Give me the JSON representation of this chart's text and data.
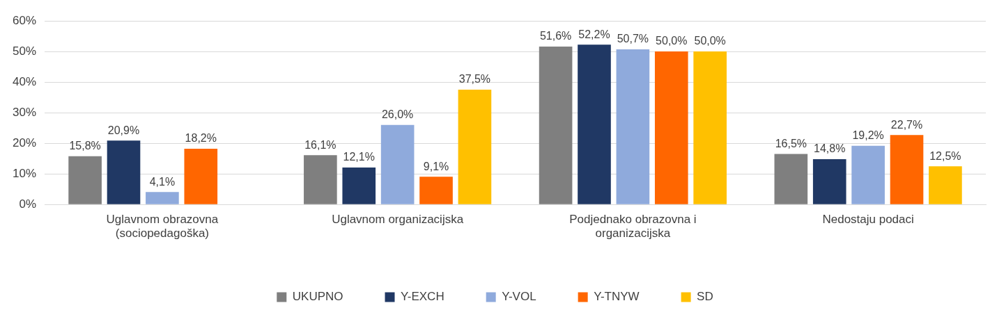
{
  "chart_data": {
    "type": "bar",
    "categories": [
      "Uglavnom obrazovna (sociopedagoška)",
      "Uglavnom organizacijska",
      "Podjednako obrazovna i organizacijska",
      "Nedostaju podaci"
    ],
    "series": [
      {
        "name": "UKUPNO",
        "color": "#7f7f7f",
        "values": [
          15.8,
          16.1,
          51.6,
          16.5
        ],
        "value_labels": [
          "15,8%",
          "16,1%",
          "51,6%",
          "16,5%"
        ]
      },
      {
        "name": "Y-EXCH",
        "color": "#203864",
        "values": [
          20.9,
          12.1,
          52.2,
          14.8
        ],
        "value_labels": [
          "20,9%",
          "12,1%",
          "52,2%",
          "14,8%"
        ]
      },
      {
        "name": "Y-VOL",
        "color": "#8faadc",
        "values": [
          4.1,
          26.0,
          50.7,
          19.2
        ],
        "value_labels": [
          "4,1%",
          "26,0%",
          "50,7%",
          "19,2%"
        ]
      },
      {
        "name": "Y-TNYW",
        "color": "#ff6600",
        "values": [
          18.2,
          9.1,
          50.0,
          22.7
        ],
        "value_labels": [
          "18,2%",
          "9,1%",
          "50,0%",
          "22,7%"
        ]
      },
      {
        "name": "SD",
        "color": "#ffc000",
        "values": [
          null,
          37.5,
          50.0,
          12.5
        ],
        "value_labels": [
          null,
          "37,5%",
          "50,0%",
          "12,5%"
        ]
      }
    ],
    "ylim": [
      0,
      60
    ],
    "yticks": [
      {
        "value": 0,
        "label": "0%"
      },
      {
        "value": 10,
        "label": "10%"
      },
      {
        "value": 20,
        "label": "20%"
      },
      {
        "value": 30,
        "label": "30%"
      },
      {
        "value": 40,
        "label": "40%"
      },
      {
        "value": 50,
        "label": "50%"
      },
      {
        "value": 60,
        "label": "60%"
      }
    ],
    "grid": "y",
    "legend": "bottom"
  }
}
